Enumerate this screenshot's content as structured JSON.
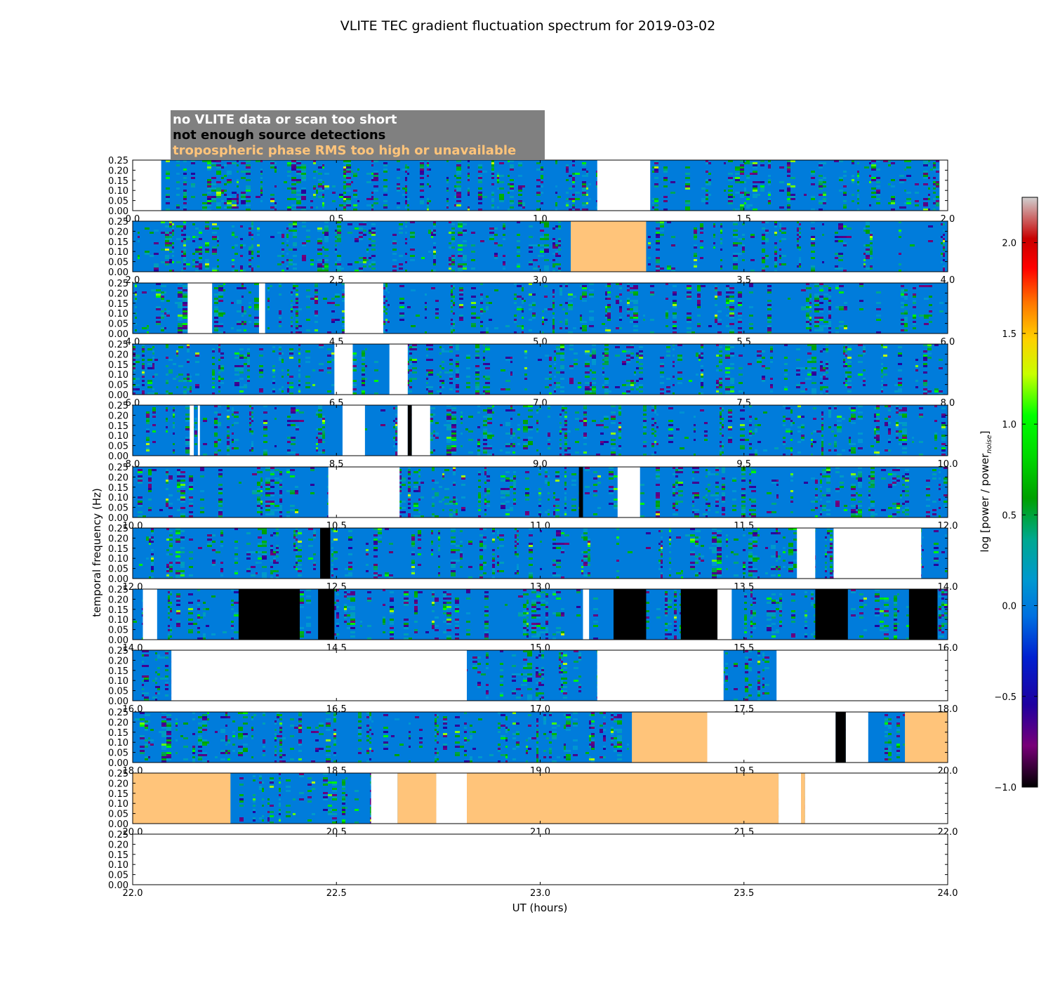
{
  "chart_data": {
    "type": "heatmap",
    "title": "VLITE TEC gradient fluctuation spectrum for 2019-03-02",
    "xlabel": "UT (hours)",
    "ylabel": "temporal frequency (Hz)",
    "colorbar": {
      "label": "log [power / power",
      "label_sub": "noise",
      "label_end": "]",
      "ticks": [
        "2.0",
        "1.5",
        "1.0",
        "0.5",
        "0.0",
        "−0.5",
        "−1.0"
      ],
      "tick_values": [
        2.0,
        1.5,
        1.0,
        0.5,
        0.0,
        -0.5,
        -1.0
      ],
      "range": [
        -1.0,
        2.25
      ]
    },
    "legend": [
      {
        "text": "no VLITE data or scan too short",
        "color": "#ffffff"
      },
      {
        "text": "not enough source detections",
        "color": "#000000"
      },
      {
        "text": "tropospheric phase RMS too high or unavailable",
        "color": "#ffc47a"
      }
    ],
    "legend_bg": "#808080",
    "flag_colors": {
      "nodata": "#ffffff",
      "detections": "#000000",
      "tropo": "#ffc47a"
    },
    "ylim": [
      0.0,
      0.25
    ],
    "yticks": [
      "0.00",
      "0.05",
      "0.10",
      "0.15",
      "0.20",
      "0.25"
    ],
    "panels": [
      {
        "xlim": [
          0,
          2
        ],
        "xticks": [
          "0.0",
          "0.5",
          "1.0",
          "1.5",
          "2.0"
        ],
        "flags": [
          [
            0.0,
            0.07,
            "nodata"
          ],
          [
            1.14,
            1.27,
            "nodata"
          ],
          [
            1.98,
            2.0,
            "nodata"
          ]
        ]
      },
      {
        "xlim": [
          2,
          4
        ],
        "xticks": [
          "2.0",
          "2.5",
          "3.0",
          "3.5",
          "4.0"
        ],
        "flags": [
          [
            3.075,
            3.26,
            "tropo"
          ]
        ]
      },
      {
        "xlim": [
          4,
          6
        ],
        "xticks": [
          "4.0",
          "4.5",
          "5.0",
          "5.5",
          "6.0"
        ],
        "flags": [
          [
            4.135,
            4.195,
            "nodata"
          ],
          [
            4.31,
            4.325,
            "nodata"
          ],
          [
            4.52,
            4.615,
            "nodata"
          ]
        ]
      },
      {
        "xlim": [
          6,
          8
        ],
        "xticks": [
          "6.0",
          "6.5",
          "7.0",
          "7.5",
          "8.0"
        ],
        "flags": [
          [
            6.495,
            6.54,
            "nodata"
          ],
          [
            6.63,
            6.675,
            "nodata"
          ]
        ]
      },
      {
        "xlim": [
          8,
          10
        ],
        "xticks": [
          "8.0",
          "8.5",
          "9.0",
          "9.5",
          "10.0"
        ],
        "flags": [
          [
            8.14,
            8.15,
            "nodata"
          ],
          [
            8.16,
            8.165,
            "nodata"
          ],
          [
            8.515,
            8.57,
            "nodata"
          ],
          [
            8.65,
            8.675,
            "nodata"
          ],
          [
            8.675,
            8.685,
            "detections"
          ],
          [
            8.685,
            8.73,
            "nodata"
          ]
        ]
      },
      {
        "xlim": [
          10,
          12
        ],
        "xticks": [
          "10.0",
          "10.5",
          "11.0",
          "11.5",
          "12.0"
        ],
        "flags": [
          [
            10.48,
            10.655,
            "nodata"
          ],
          [
            11.095,
            11.105,
            "detections"
          ],
          [
            11.19,
            11.245,
            "nodata"
          ]
        ]
      },
      {
        "xlim": [
          12,
          14
        ],
        "xticks": [
          "12.0",
          "12.5",
          "13.0",
          "13.5",
          "14.0"
        ],
        "flags": [
          [
            12.46,
            12.485,
            "detections"
          ],
          [
            13.63,
            13.675,
            "nodata"
          ],
          [
            13.72,
            13.935,
            "nodata"
          ]
        ]
      },
      {
        "xlim": [
          14,
          16
        ],
        "xticks": [
          "14.0",
          "14.5",
          "15.0",
          "15.5",
          "16.0"
        ],
        "flags": [
          [
            14.025,
            14.06,
            "nodata"
          ],
          [
            14.26,
            14.41,
            "detections"
          ],
          [
            14.455,
            14.495,
            "detections"
          ],
          [
            15.105,
            15.12,
            "nodata"
          ],
          [
            15.18,
            15.26,
            "detections"
          ],
          [
            15.345,
            15.435,
            "detections"
          ],
          [
            15.435,
            15.47,
            "nodata"
          ],
          [
            15.675,
            15.755,
            "detections"
          ],
          [
            15.905,
            15.975,
            "detections"
          ]
        ]
      },
      {
        "xlim": [
          16,
          18
        ],
        "xticks": [
          "16.0",
          "16.5",
          "17.0",
          "17.5",
          "18.0"
        ],
        "flags": [
          [
            16.095,
            16.82,
            "nodata"
          ],
          [
            17.14,
            17.45,
            "nodata"
          ],
          [
            17.58,
            18.0,
            "nodata"
          ]
        ]
      },
      {
        "xlim": [
          18,
          20
        ],
        "xticks": [
          "18.0",
          "18.5",
          "19.0",
          "19.5",
          "20.0"
        ],
        "flags": [
          [
            19.225,
            19.41,
            "tropo"
          ],
          [
            19.41,
            19.725,
            "nodata"
          ],
          [
            19.725,
            19.75,
            "detections"
          ],
          [
            19.75,
            19.805,
            "nodata"
          ],
          [
            19.895,
            20.0,
            "tropo"
          ]
        ]
      },
      {
        "xlim": [
          20,
          22
        ],
        "xticks": [
          "20.0",
          "20.5",
          "21.0",
          "21.5",
          "22.0"
        ],
        "flags": [
          [
            20.0,
            20.24,
            "tropo"
          ],
          [
            20.585,
            20.65,
            "nodata"
          ],
          [
            20.65,
            20.745,
            "tropo"
          ],
          [
            20.745,
            20.82,
            "nodata"
          ],
          [
            20.82,
            21.585,
            "tropo"
          ],
          [
            21.585,
            21.64,
            "nodata"
          ],
          [
            21.64,
            21.65,
            "tropo"
          ],
          [
            21.65,
            22.0,
            "nodata"
          ]
        ]
      },
      {
        "xlim": [
          22,
          24
        ],
        "xticks": [
          "22.0",
          "22.5",
          "23.0",
          "23.5",
          "24.0"
        ],
        "flags": [
          [
            22.0,
            24.0,
            "nodata"
          ]
        ]
      }
    ]
  }
}
